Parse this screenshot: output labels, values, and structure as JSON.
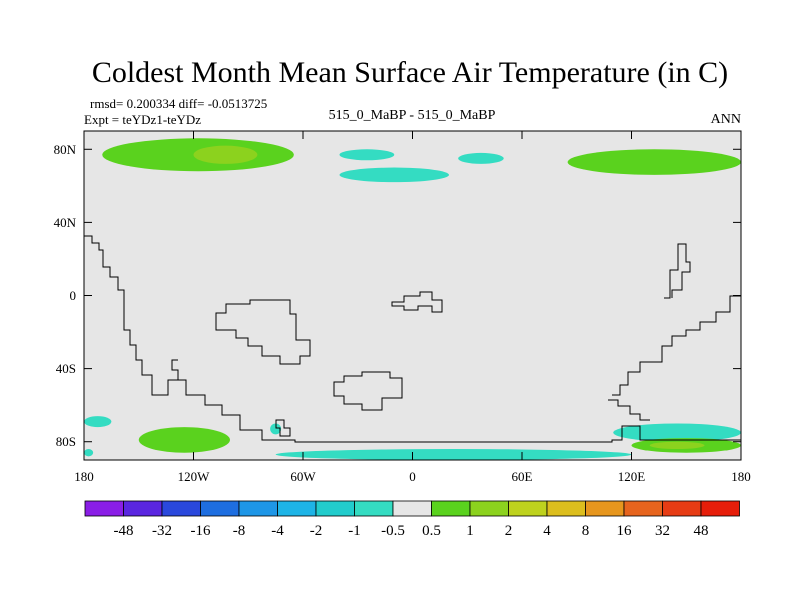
{
  "chart_data": {
    "type": "heatmap",
    "title": "Coldest Month Mean Surface Air Temperature (in C)",
    "stats_text": "rmsd= 0.200334  diff= -0.0513725",
    "expt_text": "Expt = teYDz1-teYDz",
    "center_text": "515_0_MaBP - 515_0_MaBP",
    "season": "ANN",
    "x_axis": {
      "range": [
        -180,
        180
      ],
      "ticks": [
        -180,
        -120,
        -60,
        0,
        60,
        120,
        180
      ],
      "tick_labels": [
        "180",
        "120W",
        "60W",
        "0",
        "60E",
        "120E",
        "180"
      ]
    },
    "y_axis": {
      "range": [
        -90,
        90
      ],
      "ticks": [
        80,
        40,
        0,
        -40,
        -80
      ],
      "tick_labels": [
        "80N",
        "40N",
        "0",
        "40S",
        "80S"
      ]
    },
    "colorbar": {
      "labels": [
        "-48",
        "-32",
        "-16",
        "-8",
        "-4",
        "-2",
        "-1",
        "-0.5",
        "0.5",
        "1",
        "2",
        "4",
        "8",
        "16",
        "32",
        "48"
      ],
      "colors": [
        "#8a1ee6",
        "#5a26e0",
        "#2a48dc",
        "#1e6ee0",
        "#1e96e6",
        "#1eb4e6",
        "#22cccc",
        "#34dcc2",
        "#e6e6e6",
        "#5ad21e",
        "#8cd21e",
        "#bed21e",
        "#dcbe1e",
        "#e6961e",
        "#e6641e",
        "#e63c14",
        "#e61e0a"
      ]
    },
    "background_color": "#e6e6e6",
    "anomaly_regions": [
      {
        "level": "1",
        "color": "#5ad21e",
        "lon": [
          -170,
          -65
        ],
        "lat": [
          68,
          86
        ]
      },
      {
        "level": "2",
        "color": "#8cd21e",
        "lon": [
          -120,
          -85
        ],
        "lat": [
          72,
          82
        ]
      },
      {
        "level": "-0.5",
        "color": "#34dcc2",
        "lon": [
          -40,
          -10
        ],
        "lat": [
          74,
          80
        ]
      },
      {
        "level": "-0.5",
        "color": "#34dcc2",
        "lon": [
          -40,
          20
        ],
        "lat": [
          62,
          70
        ]
      },
      {
        "level": "-0.5",
        "color": "#34dcc2",
        "lon": [
          25,
          50
        ],
        "lat": [
          72,
          78
        ]
      },
      {
        "level": "1",
        "color": "#5ad21e",
        "lon": [
          85,
          180
        ],
        "lat": [
          66,
          80
        ]
      },
      {
        "level": "-0.5",
        "color": "#34dcc2",
        "lon": [
          -180,
          -165
        ],
        "lat": [
          -72,
          -66
        ]
      },
      {
        "level": "-0.5",
        "color": "#34dcc2",
        "lon": [
          -180,
          -175
        ],
        "lat": [
          -88,
          -84
        ]
      },
      {
        "level": "1",
        "color": "#5ad21e",
        "lon": [
          -150,
          -100
        ],
        "lat": [
          -86,
          -72
        ]
      },
      {
        "level": "-0.5",
        "color": "#34dcc2",
        "lon": [
          -78,
          -72
        ],
        "lat": [
          -76,
          -70
        ]
      },
      {
        "level": "-0.5",
        "color": "#34dcc2",
        "lon": [
          -75,
          120
        ],
        "lat": [
          -90,
          -84
        ]
      },
      {
        "level": "-0.5",
        "color": "#34dcc2",
        "lon": [
          110,
          180
        ],
        "lat": [
          -80,
          -70
        ]
      },
      {
        "level": "1",
        "color": "#5ad21e",
        "lon": [
          120,
          180
        ],
        "lat": [
          -86,
          -78
        ]
      },
      {
        "level": "2",
        "color": "#8cd21e",
        "lon": [
          130,
          160
        ],
        "lat": [
          -84,
          -80
        ]
      }
    ]
  }
}
